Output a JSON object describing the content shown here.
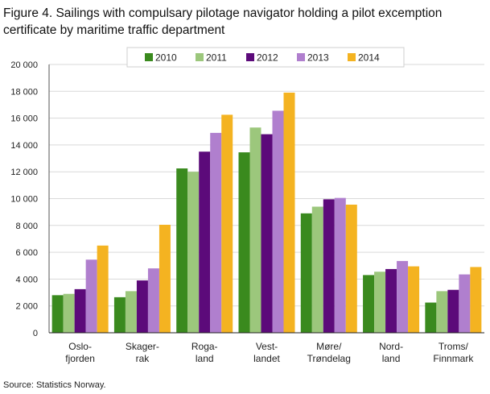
{
  "page": {
    "title_line1": "Figure 4. Sailings with compulsary pilotage navigator holding a pilot excemption",
    "title_line2": "certificate by maritime traffic department",
    "source": "Source: Statistics Norway."
  },
  "chart_data": {
    "type": "bar",
    "title": "Figure 4. Sailings with compulsary pilotage navigator holding a pilot excemption certificate by maritime traffic department",
    "xlabel": "",
    "ylabel": "",
    "ylim": [
      0,
      20000
    ],
    "yticks": [
      0,
      2000,
      4000,
      6000,
      8000,
      10000,
      12000,
      14000,
      16000,
      18000,
      20000
    ],
    "ytick_labels": [
      "0",
      "2 000",
      "4 000",
      "6 000",
      "8 000",
      "10 000",
      "12 000",
      "14 000",
      "16 000",
      "18 000",
      "20 000"
    ],
    "grid": true,
    "legend_position": "top-center",
    "categories": [
      [
        "Oslo-",
        "fjorden"
      ],
      [
        "Skager-",
        "rak"
      ],
      [
        "Roga-",
        "land"
      ],
      [
        "Vest-",
        "landet"
      ],
      [
        "Møre/",
        "Trøndelag"
      ],
      [
        "Nord-",
        "land"
      ],
      [
        "Troms/",
        "Finnmark"
      ]
    ],
    "series": [
      {
        "name": "2010",
        "color": "#3a8a1e",
        "values": [
          2800,
          2650,
          12250,
          13450,
          8900,
          4300,
          2250
        ]
      },
      {
        "name": "2011",
        "color": "#9cc77c",
        "values": [
          2900,
          3100,
          12000,
          15300,
          9400,
          4550,
          3100
        ]
      },
      {
        "name": "2012",
        "color": "#5c0a7a",
        "values": [
          3250,
          3900,
          13500,
          14800,
          9950,
          4750,
          3200
        ]
      },
      {
        "name": "2013",
        "color": "#b07fce",
        "values": [
          5450,
          4800,
          14900,
          16550,
          10050,
          5350,
          4350
        ]
      },
      {
        "name": "2014",
        "color": "#f4b321",
        "values": [
          6500,
          8050,
          16250,
          17900,
          9550,
          4950,
          4900
        ]
      }
    ]
  }
}
